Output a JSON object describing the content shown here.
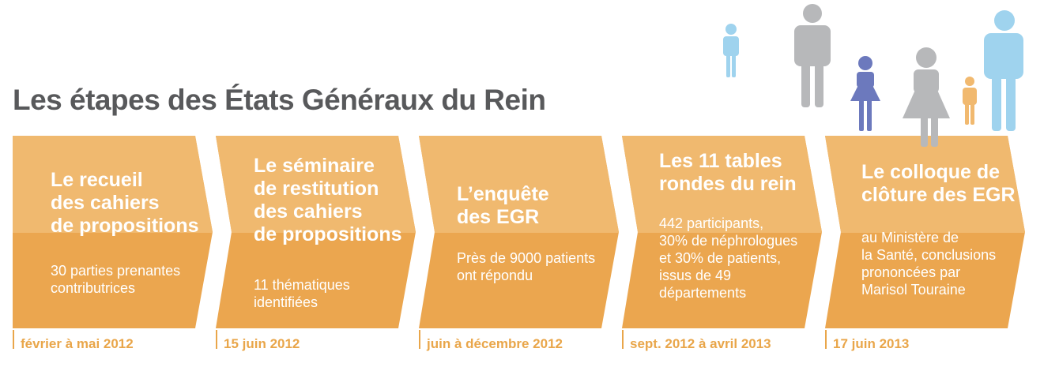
{
  "title": "Les étapes des États Généraux du Rein",
  "colors": {
    "arrow_top": "#f0b96f",
    "arrow_bottom": "#eba64f",
    "text_white": "#ffffff",
    "date_orange": "#e9a64a",
    "title_gray": "#58595b",
    "person_gray": "#b7b8ba",
    "person_blue": "#9fd3ee",
    "person_purple": "#6c79bd",
    "person_orange": "#f1b96f"
  },
  "steps": [
    {
      "title_lines": [
        "Le recueil",
        "des cahiers",
        "de propositions"
      ],
      "desc_lines": [
        "30 parties prenantes",
        "contributrices"
      ],
      "date": "février à mai 2012"
    },
    {
      "title_lines": [
        "Le séminaire",
        "de restitution",
        "des cahiers",
        "de propositions"
      ],
      "desc_lines": [
        "11 thématiques",
        "identifiées"
      ],
      "date": "15 juin 2012"
    },
    {
      "title_lines": [
        "L’enquête",
        "des EGR"
      ],
      "desc_lines": [
        "Près de 9000 patients",
        "ont répondu"
      ],
      "date": "juin à décembre 2012"
    },
    {
      "title_lines": [
        "Les 11 tables",
        "rondes du rein"
      ],
      "desc_lines": [
        "442 participants,",
        "30% de néphrologues",
        "et 30% de patients,",
        "issus de 49",
        "départements"
      ],
      "date": "sept. 2012 à avril 2013"
    },
    {
      "title_lines": [
        "Le colloque de",
        "clôture des EGR"
      ],
      "desc_lines": [
        "au Ministère de",
        "la Santé, conclusions",
        "prononcées par",
        "Marisol Touraine"
      ],
      "date": "17 juin 2013"
    }
  ],
  "people_icons": [
    "child-icon",
    "man-icon",
    "girl-icon",
    "woman-icon",
    "boy-icon",
    "man-icon"
  ]
}
